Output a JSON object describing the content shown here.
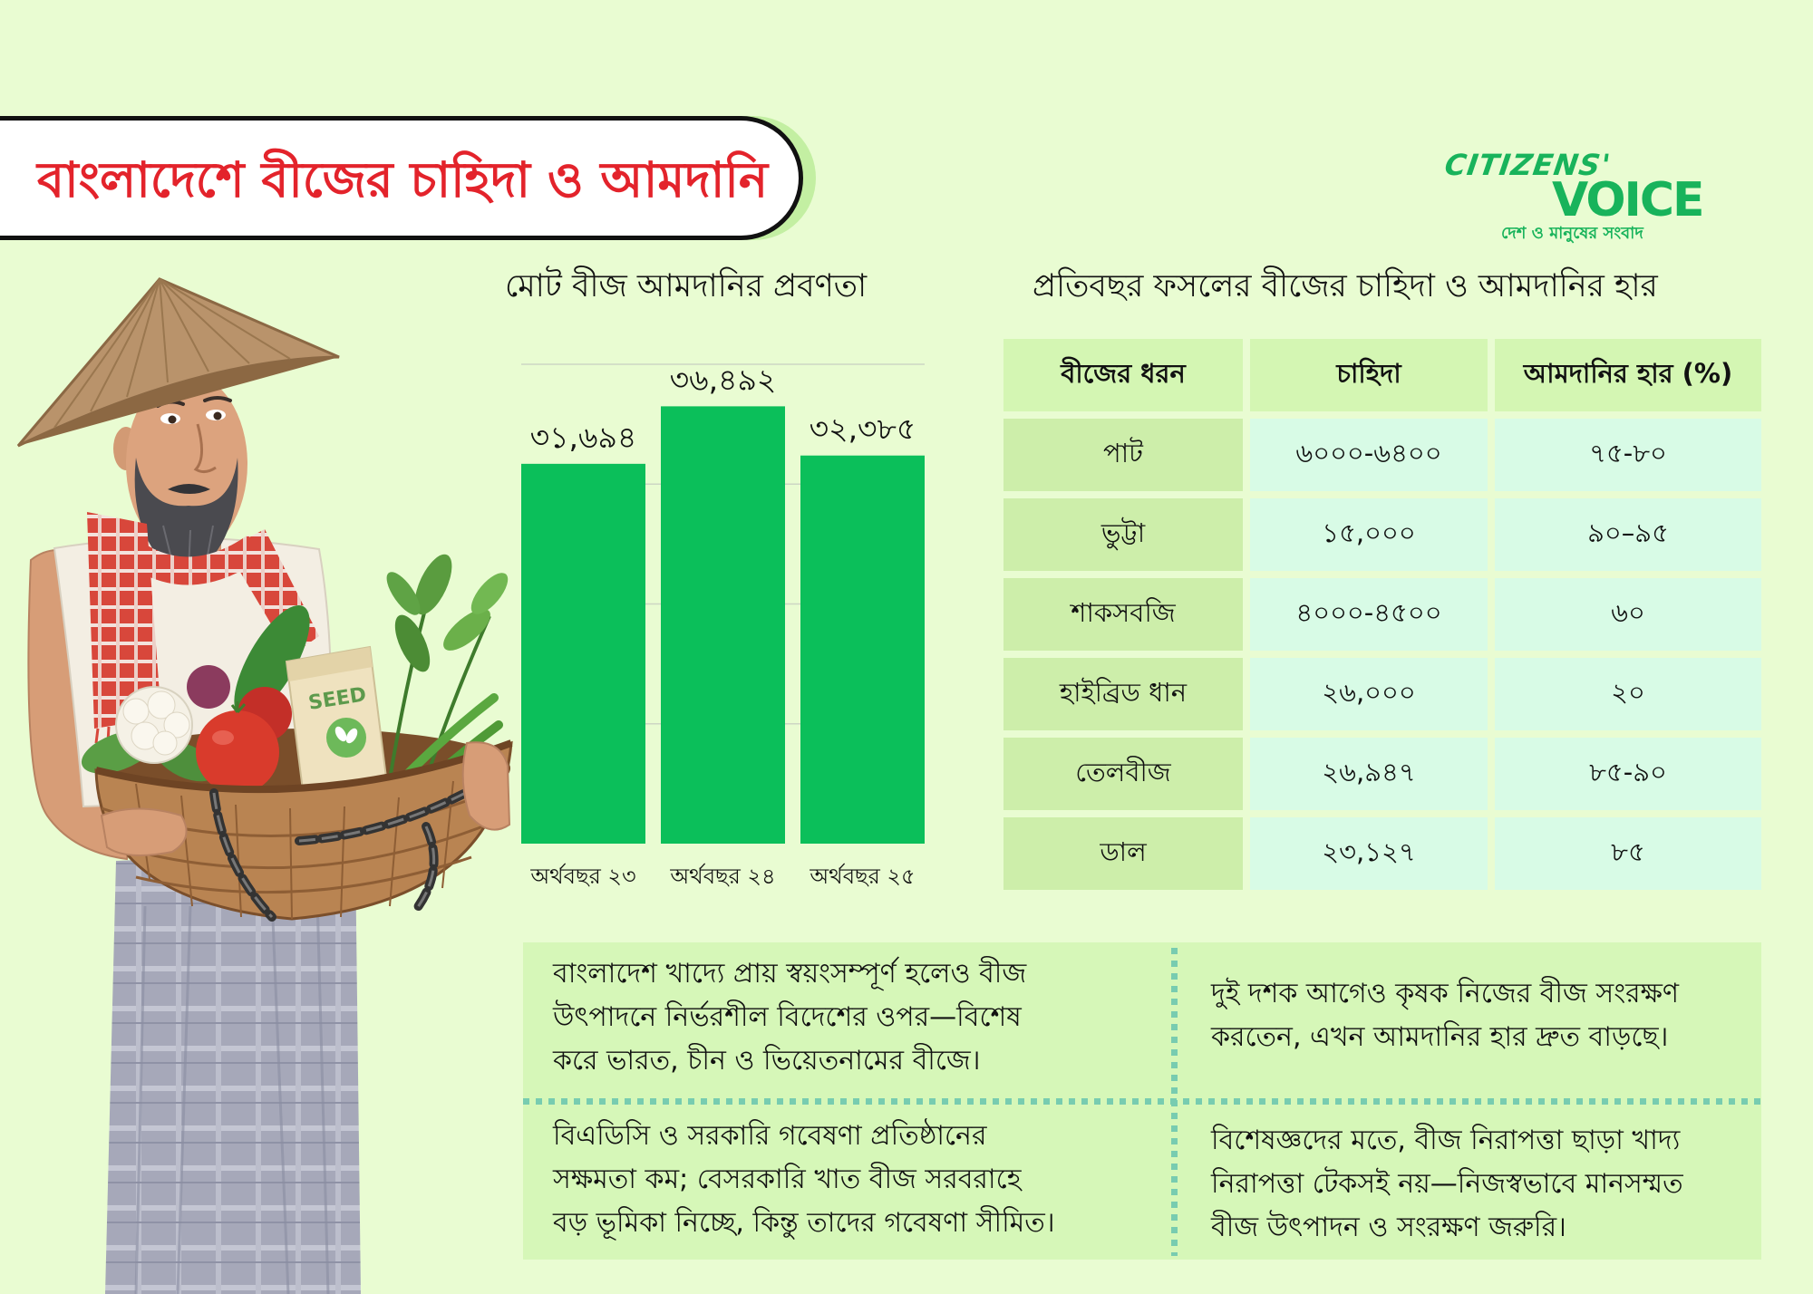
{
  "colors": {
    "background": "#e9fcd2",
    "title_red": "#e3232b",
    "brand_green": "#18b35b",
    "bar_green": "#0bbf5a",
    "panel_green": "#d6f7b8",
    "cell_mint": "#d8fbe6",
    "divider_teal": "#78ccb0"
  },
  "header": {
    "title": "বাংলাদেশে বীজের চাহিদা ও আমদানি"
  },
  "logo": {
    "top": "CITIZENS'",
    "main": "VOICE",
    "tagline": "দেশ ও মানুষের সংবাদ"
  },
  "illustration": {
    "icon": "farmer-with-vegetable-basket",
    "seed_label": "SEED"
  },
  "chart_data": {
    "type": "bar",
    "title": "মোট বীজ আমদানির প্রবণতা",
    "categories": [
      "অর্থবছর ২৩",
      "অর্থবছর ২৪",
      "অর্থবছর ২৫"
    ],
    "values": [
      31694,
      36492,
      32385
    ],
    "value_labels": [
      "৩১,৬৯৪",
      "৩৬,৪৯২",
      "৩২,৩৮৫"
    ],
    "ylim": [
      0,
      40000
    ],
    "grid": true,
    "grid_interval": 10000,
    "color": "#0bbf5a"
  },
  "table": {
    "title": "প্রতিবছর ফসলের বীজের চাহিদা ও আমদানির হার",
    "headers": [
      "বীজের ধরন",
      "চাহিদা",
      "আমদানির হার (%)"
    ],
    "rows": [
      [
        "পাট",
        "৬০০০-৬৪০০",
        "৭৫-৮০"
      ],
      [
        "ভুট্টা",
        "১৫,০০০",
        "৯০–৯৫"
      ],
      [
        "শাকসবজি",
        "৪০০০-৪৫০০",
        "৬০"
      ],
      [
        "হাইব্রিড ধান",
        "২৬,০০০",
        "২০"
      ],
      [
        "তেলবীজ",
        "২৬,৯৪৭",
        "৮৫-৯০"
      ],
      [
        "ডাল",
        "২৩,১২৭",
        "৮৫"
      ]
    ]
  },
  "notes": {
    "top_left": [
      "বাংলাদেশ খাদ্যে প্রায় স্বয়ংসম্পূর্ণ হলেও বীজ",
      "উৎপাদনে নির্ভরশীল বিদেশের ওপর—বিশেষ",
      "করে ভারত, চীন ও ভিয়েতনামের বীজে।"
    ],
    "top_right": [
      "দুই দশক আগেও কৃষক নিজের বীজ সংরক্ষণ",
      "করতেন, এখন আমদানির হার দ্রুত বাড়ছে।"
    ],
    "bottom_left": [
      "বিএডিসি ও সরকারি গবেষণা প্রতিষ্ঠানের",
      "সক্ষমতা কম; বেসরকারি খাত বীজ সরবরাহে",
      "বড় ভূমিকা নিচ্ছে, কিন্তু তাদের গবেষণা সীমিত।"
    ],
    "bottom_right": [
      "বিশেষজ্ঞদের মতে, বীজ নিরাপত্তা ছাড়া খাদ্য",
      "নিরাপত্তা টেকসই নয়—নিজস্বভাবে মানসম্মত",
      "বীজ উৎপাদন ও সংরক্ষণ জরুরি।"
    ]
  }
}
